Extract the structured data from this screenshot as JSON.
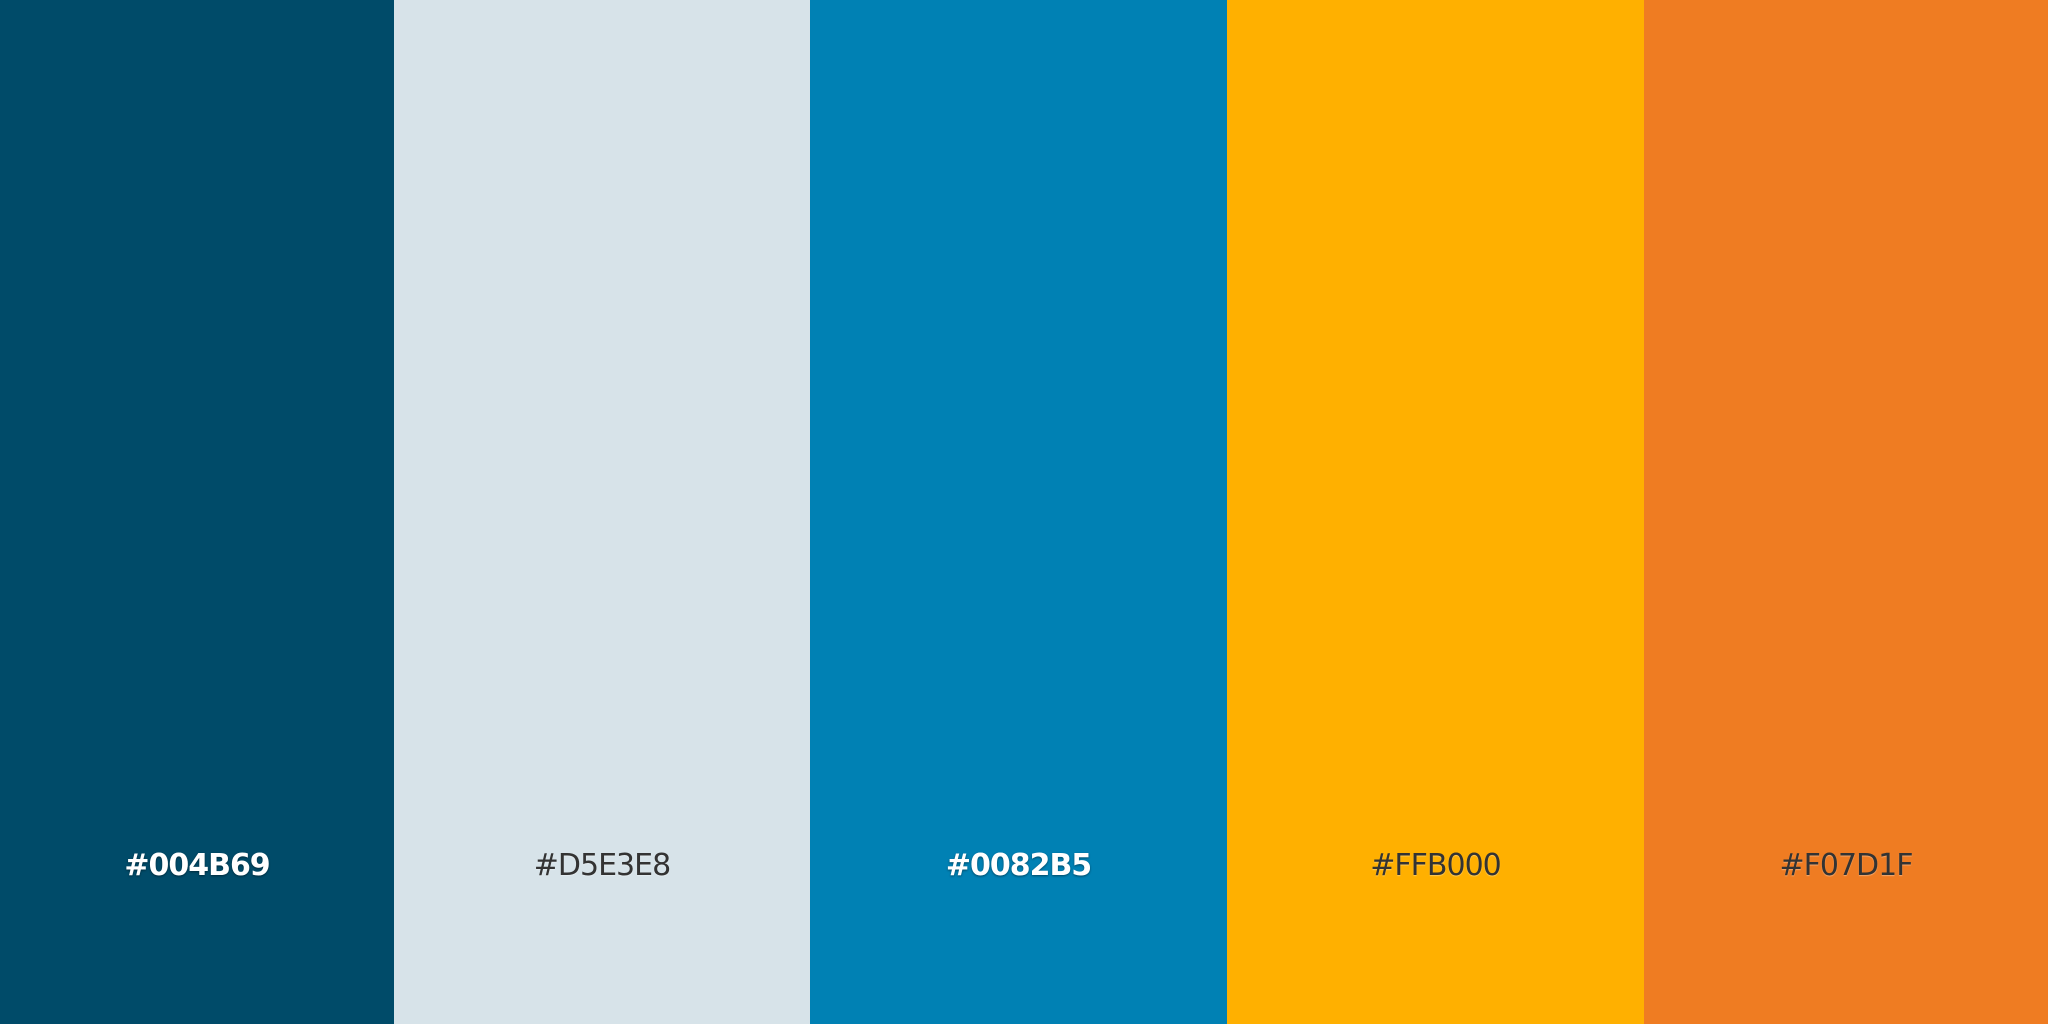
{
  "swatches": [
    {
      "hex": "#004B69",
      "color": "#004B69",
      "label_tone": "light"
    },
    {
      "hex": "#D5E3E8",
      "color": "#D7E3E9",
      "label_tone": "dark"
    },
    {
      "hex": "#0082B5",
      "color": "#0081B4",
      "label_tone": "light"
    },
    {
      "hex": "#FFB000",
      "color": "#FFB000",
      "label_tone": "dark"
    },
    {
      "hex": "#F07D1F",
      "color": "#EF7C22",
      "label_tone": "dark"
    }
  ]
}
